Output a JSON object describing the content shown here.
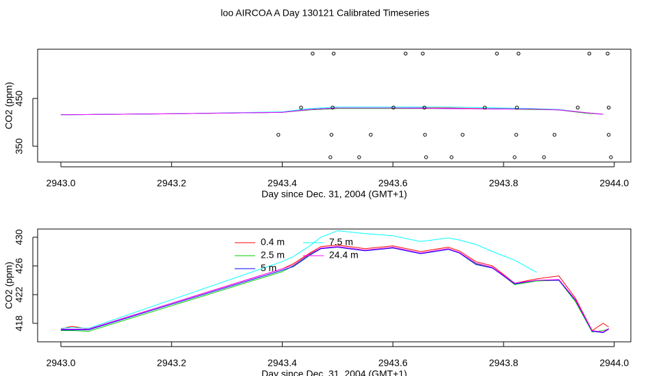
{
  "title": "loo AIRCOA A  Day 130121  Calibrated Timeseries",
  "chart_data": [
    {
      "type": "line",
      "xlabel": "Day since Dec. 31, 2004 (GMT+1)",
      "ylabel": "CO2 (ppm)",
      "xlim": [
        2942.958,
        2944.03
      ],
      "ylim": [
        317,
        553
      ],
      "xticks": [
        {
          "value": 2943,
          "label": "2943.0"
        },
        2943.2,
        2943.4,
        2943.6,
        2943.8,
        {
          "value": 2944,
          "label": "2944.0"
        }
      ],
      "yticks": [
        350,
        450
      ],
      "x": [
        2943.0,
        2943.2,
        2943.4,
        2943.45,
        2943.5,
        2943.6,
        2943.7,
        2943.8,
        2943.85,
        2943.9,
        2943.95,
        2943.98
      ],
      "series": [
        {
          "color": "#ff0000",
          "values": [
            416,
            418,
            421,
            427,
            430,
            430,
            430,
            428,
            428,
            427,
            420,
            417
          ]
        },
        {
          "color": "#00cd00",
          "values": [
            416,
            418,
            421,
            426,
            429,
            429,
            429,
            428,
            427,
            426,
            419,
            417
          ]
        },
        {
          "color": "#0000ff",
          "values": [
            416,
            418,
            421,
            427,
            430,
            430,
            429,
            428,
            428,
            426,
            420,
            417
          ]
        },
        {
          "color": "#00ffff",
          "values": [
            416,
            418,
            422,
            429,
            432,
            432,
            432,
            430,
            429,
            427,
            420,
            417
          ]
        },
        {
          "color": "#ff00ff",
          "values": [
            416,
            418,
            421,
            427,
            430,
            430,
            429,
            428,
            428,
            426,
            420,
            417
          ]
        }
      ],
      "markers": {
        "color": "#000000",
        "x": [
          2943.455,
          2943.493,
          2943.623,
          2943.654,
          2943.788,
          2943.827,
          2943.955,
          2943.988,
          2943.434,
          2943.491,
          2943.601,
          2943.657,
          2943.766,
          2943.824,
          2943.934,
          2943.99,
          2943.393,
          2943.489,
          2943.56,
          2943.658,
          2943.726,
          2943.823,
          2943.892,
          2943.99,
          2943.487,
          2943.539,
          2943.66,
          2943.706,
          2943.82,
          2943.873,
          2943.994
        ],
        "values": [
          544,
          544,
          544,
          544,
          544,
          544,
          544,
          544,
          431,
          431,
          431,
          431,
          431,
          431,
          431,
          431,
          374,
          374,
          374,
          374,
          374,
          374,
          374,
          374,
          327,
          327,
          327,
          327,
          327,
          327,
          327
        ]
      }
    },
    {
      "type": "line",
      "xlabel": "Day since Dec. 31, 2004 (GMT+1)",
      "ylabel": "CO2 (ppm)",
      "xlim": [
        2942.958,
        2944.03
      ],
      "ylim": [
        415.43,
        431.14
      ],
      "xticks": [
        {
          "value": 2943,
          "label": "2943.0"
        },
        2943.2,
        2943.4,
        2943.6,
        2943.8,
        {
          "value": 2944,
          "label": "2944.0"
        }
      ],
      "yticks": [
        418,
        422,
        426,
        430
      ],
      "legend": true,
      "x": [
        2943.0,
        2943.02,
        2943.05,
        2943.4,
        2943.42,
        2943.45,
        2943.47,
        2943.5,
        2943.55,
        2943.6,
        2943.65,
        2943.7,
        2943.72,
        2943.75,
        2943.78,
        2943.82,
        2943.86,
        2943.9,
        2943.93,
        2943.96,
        2943.98,
        2943.99
      ],
      "series": [
        {
          "name": "0.4 m",
          "color": "#ff0000",
          "values": [
            417.2,
            417.6,
            417.2,
            425.6,
            426.3,
            427.8,
            428.7,
            428.9,
            428.4,
            428.8,
            428.0,
            428.6,
            428.1,
            426.6,
            426.0,
            423.6,
            424.2,
            424.6,
            421.5,
            417.0,
            418.0,
            417.5
          ]
        },
        {
          "name": "2.5 m",
          "color": "#00cd00",
          "values": [
            417.0,
            417.0,
            416.9,
            425.2,
            426.0,
            427.6,
            428.5,
            428.7,
            428.2,
            428.6,
            427.8,
            428.4,
            427.9,
            426.3,
            425.8,
            423.4,
            423.9,
            424.0,
            421.0,
            416.8,
            417.0,
            417.2
          ]
        },
        {
          "name": "5 m",
          "color": "#0000ff",
          "values": [
            417.1,
            417.1,
            417.1,
            425.4,
            425.9,
            427.5,
            428.4,
            428.6,
            428.1,
            428.5,
            427.7,
            428.3,
            427.8,
            426.2,
            425.7,
            423.5,
            424.0,
            424.0,
            421.2,
            416.9,
            416.7,
            417.2
          ]
        },
        {
          "name": "7.5 m",
          "color": "#00ffff",
          "values": [
            417.3,
            417.4,
            417.3,
            426.6,
            427.3,
            428.8,
            430.0,
            430.9,
            430.5,
            430.2,
            429.4,
            429.9,
            429.6,
            429.0,
            428.0,
            426.8,
            425.1,
            null,
            null,
            null,
            null,
            null
          ]
        },
        {
          "name": "24.4 m",
          "color": "#ff00ff",
          "values": [
            417.2,
            417.2,
            417.2,
            425.6,
            426.1,
            427.7,
            428.5,
            428.7,
            428.2,
            428.6,
            427.8,
            428.4,
            427.9,
            426.4,
            425.8,
            423.6,
            424.0,
            424.1,
            421.3,
            417.0,
            416.8,
            417.3
          ]
        }
      ]
    }
  ]
}
